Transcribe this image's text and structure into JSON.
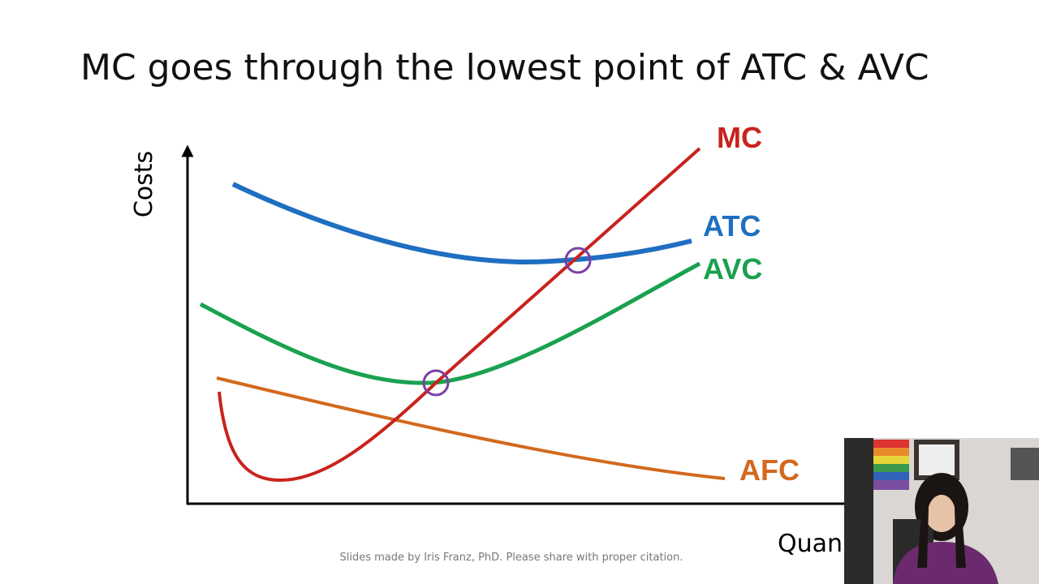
{
  "slide": {
    "title": "MC goes through the lowest point of ATC & AVC",
    "y_axis_label": "Costs",
    "x_axis_label": "Quan",
    "curve_labels": {
      "mc": "MC",
      "atc": "ATC",
      "avc": "AVC",
      "afc": "AFC"
    },
    "footer": "Slides made by Iris Franz, PhD. Please share with proper citation."
  }
}
